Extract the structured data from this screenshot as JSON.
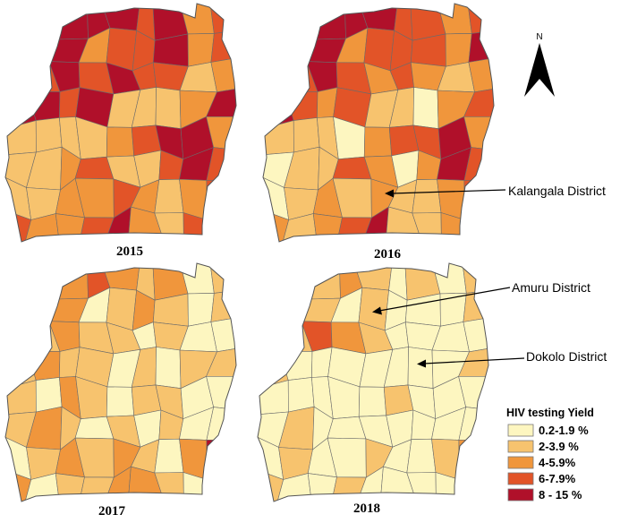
{
  "maps": [
    {
      "year": "2015",
      "districts": [
        "2",
        "2",
        "4",
        "4",
        "4",
        "3",
        "4",
        "2",
        "3",
        "4",
        "4",
        "4",
        "2",
        "3",
        "3",
        "4",
        "2",
        "3",
        "2",
        "3",
        "4",
        "3",
        "4",
        "3",
        "3",
        "1",
        "2",
        "4",
        "4",
        "3",
        "4",
        "1",
        "1",
        "1",
        "2",
        "4",
        "1",
        "1",
        "1",
        "1",
        "2",
        "3",
        "4",
        "4",
        "2",
        "1",
        "1",
        "2",
        "3",
        "1",
        "1",
        "3",
        "4",
        "3",
        "1",
        "1",
        "2",
        "2",
        "3",
        "2",
        "1",
        "2",
        "3",
        "3",
        "2",
        "2",
        "3",
        "4",
        "2",
        "1",
        "3",
        "2"
      ]
    },
    {
      "year": "2016",
      "districts": [
        "2",
        "3",
        "4",
        "4",
        "4",
        "3",
        "3",
        "2",
        "3",
        "4",
        "3",
        "4",
        "2",
        "3",
        "3",
        "3",
        "2",
        "4",
        "1",
        "3",
        "4",
        "3",
        "2",
        "3",
        "2",
        "1",
        "2",
        "4",
        "3",
        "2",
        "3",
        "1",
        "1",
        "0",
        "2",
        "3",
        "1",
        "1",
        "1",
        "0",
        "2",
        "3",
        "3",
        "4",
        "2",
        "0",
        "1",
        "1",
        "3",
        "2",
        "0",
        "2",
        "4",
        "3",
        "0",
        "1",
        "2",
        "1",
        "2",
        "1",
        "1",
        "2",
        "3",
        "2",
        "1",
        "2",
        "3",
        "4",
        "1",
        "1",
        "2",
        "1"
      ]
    },
    {
      "year": "2017",
      "districts": [
        "0",
        "1",
        "2",
        "3",
        "2",
        "1",
        "2",
        "0",
        "1",
        "2",
        "3",
        "2",
        "0",
        "1",
        "2",
        "1",
        "0",
        "1",
        "4",
        "1",
        "2",
        "1",
        "1",
        "0",
        "1",
        "0",
        "0",
        "1",
        "2",
        "1",
        "1",
        "0",
        "1",
        "0",
        "1",
        "1",
        "1",
        "0",
        "2",
        "1",
        "0",
        "1",
        "1",
        "0",
        "0",
        "1",
        "2",
        "1",
        "0",
        "1",
        "0",
        "1",
        "0",
        "0",
        "0",
        "1",
        "2",
        "1",
        "2",
        "1",
        "0",
        "2",
        "4",
        "2",
        "0",
        "1",
        "1",
        "2",
        "2",
        "1",
        "0",
        "0"
      ]
    },
    {
      "year": "2018",
      "districts": [
        "0",
        "1",
        "1",
        "2",
        "1",
        "0",
        "1",
        "0",
        "1",
        "2",
        "1",
        "1",
        "0",
        "1",
        "0",
        "0",
        "0",
        "1",
        "4",
        "1",
        "3",
        "2",
        "1",
        "0",
        "0",
        "0",
        "0",
        "1",
        "0",
        "0",
        "0",
        "0",
        "0",
        "0",
        "0",
        "1",
        "0",
        "0",
        "0",
        "0",
        "0",
        "1",
        "0",
        "0",
        "0",
        "0",
        "1",
        "0",
        "0",
        "0",
        "0",
        "0",
        "0",
        "0",
        "0",
        "1",
        "0",
        "0",
        "1",
        "0",
        "0",
        "1",
        "2",
        "1",
        "0",
        "0",
        "1",
        "0",
        "0",
        "0",
        "0",
        "0"
      ]
    }
  ],
  "annotations": [
    {
      "text": "Kalangala District"
    },
    {
      "text": "Amuru District"
    },
    {
      "text": "Dokolo District"
    }
  ],
  "north_label": "N",
  "legend": {
    "title": "HIV testing Yield",
    "items": [
      {
        "label": "0.2-1.9 %",
        "color": "#fdf6c0"
      },
      {
        "label": "2-3.9 %",
        "color": "#f7c36e"
      },
      {
        "label": "4-5.9%",
        "color": "#f0963c"
      },
      {
        "label": "6-7.9%",
        "color": "#e25428"
      },
      {
        "label": "8 - 15 %",
        "color": "#b0102a"
      }
    ]
  }
}
